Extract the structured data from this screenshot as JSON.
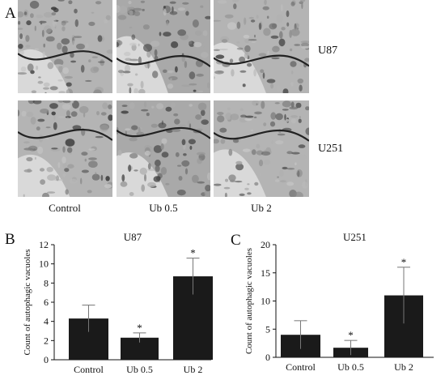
{
  "figure": {
    "panel_a": {
      "letter": "A",
      "row_labels": [
        "U87",
        "U251"
      ],
      "column_labels": [
        "Control",
        "Ub 0.5",
        "Ub 2"
      ]
    },
    "panel_b": {
      "letter": "B"
    },
    "panel_c": {
      "letter": "C"
    }
  },
  "chart_data": [
    {
      "type": "bar",
      "title": "U87",
      "ylabel": "Count of autophagic vacuoles",
      "xlabel": "",
      "categories": [
        "Control",
        "Ub 0.5",
        "Ub 2"
      ],
      "values": [
        4.3,
        2.3,
        8.7
      ],
      "error": [
        1.4,
        0.5,
        1.9
      ],
      "significance": [
        "",
        "*",
        "*"
      ],
      "ylim": [
        0,
        12
      ],
      "yticks": [
        0,
        2,
        4,
        6,
        8,
        10,
        12
      ],
      "bar_color": "#1a1a1a"
    },
    {
      "type": "bar",
      "title": "U251",
      "ylabel": "Count of autophagic vacuoles",
      "xlabel": "",
      "categories": [
        "Control",
        "Ub 0.5",
        "Ub 2"
      ],
      "values": [
        4.0,
        1.7,
        11.0
      ],
      "error": [
        2.5,
        1.3,
        5.0
      ],
      "significance": [
        "",
        "*",
        "*"
      ],
      "ylim": [
        0,
        20
      ],
      "yticks": [
        0,
        5,
        10,
        15,
        20
      ],
      "bar_color": "#1a1a1a"
    }
  ]
}
